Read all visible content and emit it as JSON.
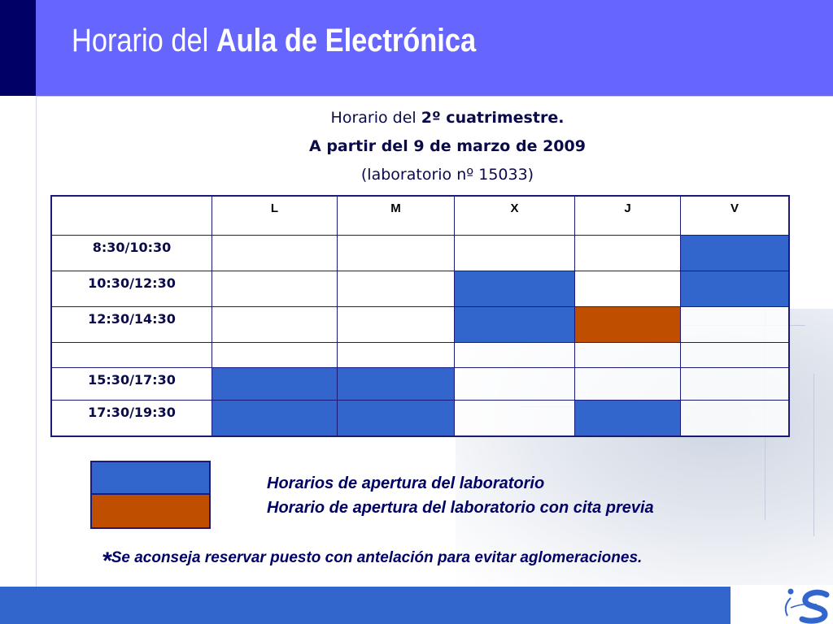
{
  "slide": {
    "title_regular": "Horario del ",
    "title_bold": "Aula de Electrónica"
  },
  "subtitle": {
    "line1_regular": "Horario del ",
    "line1_bold": "2º cuatrimestre.",
    "line2": "A partir del 9 de marzo de 2009",
    "line3": "(laboratorio nº 15033)"
  },
  "schedule": {
    "corner": "",
    "days": [
      "L",
      "M",
      "X",
      "J",
      "V"
    ],
    "rows": [
      {
        "time": "8:30/10:30",
        "cells": [
          "empty",
          "empty",
          "empty",
          "empty",
          "open"
        ]
      },
      {
        "time": "10:30/12:30",
        "cells": [
          "empty",
          "empty",
          "open",
          "empty",
          "open"
        ]
      },
      {
        "time": "12:30/14:30",
        "cells": [
          "empty",
          "empty",
          "open",
          "appointment",
          "empty"
        ]
      },
      {
        "time": "",
        "cells": [
          "empty",
          "empty",
          "empty",
          "empty",
          "empty"
        ]
      },
      {
        "time": "15:30/17:30",
        "cells": [
          "open",
          "open",
          "empty",
          "empty",
          "empty"
        ]
      },
      {
        "time": "17:30/19:30",
        "cells": [
          "open",
          "open",
          "empty",
          "open",
          "empty"
        ]
      }
    ]
  },
  "legend": {
    "open_label": "Horarios de apertura del laboratorio",
    "appointment_label": "Horario de apertura del laboratorio con cita previa",
    "open_color": "#3366cc",
    "appointment_color": "#c04e00"
  },
  "note": {
    "star": "*",
    "text": "Se aconseja reservar puesto con antelación para evitar aglomeraciones."
  },
  "colors": {
    "header": "#6666ff",
    "header_dark": "#000066",
    "footer": "#3366cc"
  },
  "icons": {
    "logo": "university-logo-icon"
  }
}
